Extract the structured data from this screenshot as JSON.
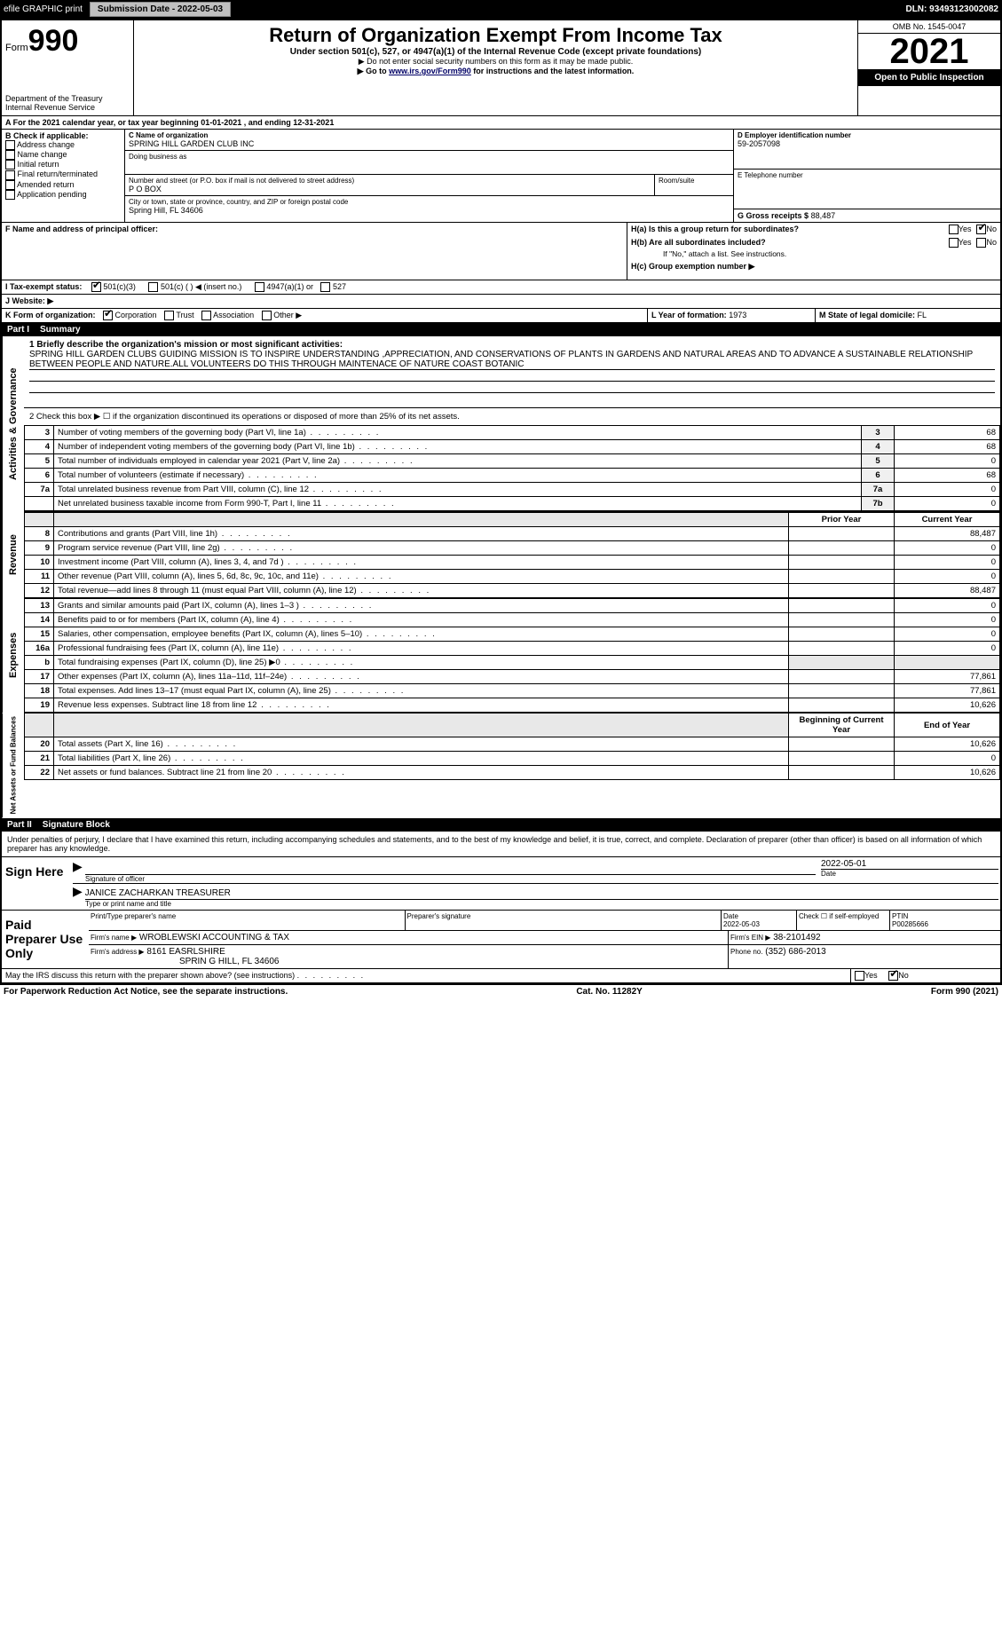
{
  "topbar": {
    "efile": "efile GRAPHIC print",
    "submission_label": "Submission Date - 2022-05-03",
    "dln": "DLN: 93493123002082"
  },
  "header": {
    "form_prefix": "Form",
    "form_num": "990",
    "title": "Return of Organization Exempt From Income Tax",
    "subtitle": "Under section 501(c), 527, or 4947(a)(1) of the Internal Revenue Code (except private foundations)",
    "note1": "▶ Do not enter social security numbers on this form as it may be made public.",
    "note2_pre": "▶ Go to ",
    "note2_link": "www.irs.gov/Form990",
    "note2_post": " for instructions and the latest information.",
    "dept": "Department of the Treasury",
    "irs": "Internal Revenue Service",
    "omb": "OMB No. 1545-0047",
    "year": "2021",
    "open": "Open to Public Inspection"
  },
  "line_a": "A For the 2021 calendar year, or tax year beginning 01-01-2021   , and ending 12-31-2021",
  "box_b": {
    "label": "B Check if applicable:",
    "items": [
      "Address change",
      "Name change",
      "Initial return",
      "Final return/terminated",
      "Amended return",
      "Application pending"
    ]
  },
  "box_c": {
    "label": "C Name of organization",
    "name": "SPRING HILL GARDEN CLUB INC",
    "dba_label": "Doing business as",
    "street_label": "Number and street (or P.O. box if mail is not delivered to street address)",
    "street": "P O BOX",
    "room_label": "Room/suite",
    "city_label": "City or town, state or province, country, and ZIP or foreign postal code",
    "city": "Spring Hill, FL  34606"
  },
  "box_d": {
    "label": "D Employer identification number",
    "value": "59-2057098"
  },
  "box_e": {
    "label": "E Telephone number",
    "value": ""
  },
  "box_g": {
    "label": "G Gross receipts $",
    "value": "88,487"
  },
  "box_f": {
    "label": "F  Name and address of principal officer:"
  },
  "box_h": {
    "a": "H(a)  Is this a group return for subordinates?",
    "b": "H(b)  Are all subordinates included?",
    "note": "If \"No,\" attach a list. See instructions.",
    "c": "H(c)  Group exemption number ▶",
    "yes": "Yes",
    "no": "No"
  },
  "box_i": {
    "label": "I  Tax-exempt status:",
    "opts": [
      "501(c)(3)",
      "501(c) (  ) ◀ (insert no.)",
      "4947(a)(1) or",
      "527"
    ]
  },
  "box_j": {
    "label": "J  Website: ▶"
  },
  "box_k": {
    "label": "K Form of organization:",
    "opts": [
      "Corporation",
      "Trust",
      "Association",
      "Other ▶"
    ]
  },
  "box_l": {
    "label": "L Year of formation: ",
    "value": "1973"
  },
  "box_m": {
    "label": "M State of legal domicile: ",
    "value": "FL"
  },
  "part1": {
    "num": "Part I",
    "title": "Summary"
  },
  "summary": {
    "l1_label": "1  Briefly describe the organization's mission or most significant activities:",
    "l1_text": "SPRING HILL GARDEN CLUBS GUIDING MISSION IS TO INSPIRE UNDERSTANDING ,APPRECIATION, AND CONSERVATIONS OF PLANTS IN GARDENS AND NATURAL AREAS AND TO ADVANCE A SUSTAINABLE RELATIONSHIP BETWEEN PEOPLE AND NATURE.ALL VOLUNTEERS DO THIS THROUGH MAINTENACE OF NATURE COAST BOTANIC",
    "l2": "2   Check this box ▶ ☐  if the organization discontinued its operations or disposed of more than 25% of its net assets."
  },
  "gov_lines": [
    {
      "n": "3",
      "d": "Number of voting members of the governing body (Part VI, line 1a)",
      "b": "3",
      "v": "68"
    },
    {
      "n": "4",
      "d": "Number of independent voting members of the governing body (Part VI, line 1b)",
      "b": "4",
      "v": "68"
    },
    {
      "n": "5",
      "d": "Total number of individuals employed in calendar year 2021 (Part V, line 2a)",
      "b": "5",
      "v": "0"
    },
    {
      "n": "6",
      "d": "Total number of volunteers (estimate if necessary)",
      "b": "6",
      "v": "68"
    },
    {
      "n": "7a",
      "d": "Total unrelated business revenue from Part VIII, column (C), line 12",
      "b": "7a",
      "v": "0"
    },
    {
      "n": "",
      "d": "Net unrelated business taxable income from Form 990-T, Part I, line 11",
      "b": "7b",
      "v": "0"
    }
  ],
  "col_headers": {
    "prior": "Prior Year",
    "current": "Current Year"
  },
  "rev_lines": [
    {
      "n": "8",
      "d": "Contributions and grants (Part VIII, line 1h)",
      "p": "",
      "c": "88,487"
    },
    {
      "n": "9",
      "d": "Program service revenue (Part VIII, line 2g)",
      "p": "",
      "c": "0"
    },
    {
      "n": "10",
      "d": "Investment income (Part VIII, column (A), lines 3, 4, and 7d )",
      "p": "",
      "c": "0"
    },
    {
      "n": "11",
      "d": "Other revenue (Part VIII, column (A), lines 5, 6d, 8c, 9c, 10c, and 11e)",
      "p": "",
      "c": "0"
    },
    {
      "n": "12",
      "d": "Total revenue—add lines 8 through 11 (must equal Part VIII, column (A), line 12)",
      "p": "",
      "c": "88,487"
    }
  ],
  "exp_lines": [
    {
      "n": "13",
      "d": "Grants and similar amounts paid (Part IX, column (A), lines 1–3 )",
      "p": "",
      "c": "0"
    },
    {
      "n": "14",
      "d": "Benefits paid to or for members (Part IX, column (A), line 4)",
      "p": "",
      "c": "0"
    },
    {
      "n": "15",
      "d": "Salaries, other compensation, employee benefits (Part IX, column (A), lines 5–10)",
      "p": "",
      "c": "0"
    },
    {
      "n": "16a",
      "d": "Professional fundraising fees (Part IX, column (A), line 11e)",
      "p": "",
      "c": "0"
    },
    {
      "n": "b",
      "d": "Total fundraising expenses (Part IX, column (D), line 25) ▶0",
      "p": "-",
      "c": "-"
    },
    {
      "n": "17",
      "d": "Other expenses (Part IX, column (A), lines 11a–11d, 11f–24e)",
      "p": "",
      "c": "77,861"
    },
    {
      "n": "18",
      "d": "Total expenses. Add lines 13–17 (must equal Part IX, column (A), line 25)",
      "p": "",
      "c": "77,861"
    },
    {
      "n": "19",
      "d": "Revenue less expenses. Subtract line 18 from line 12",
      "p": "",
      "c": "10,626"
    }
  ],
  "na_headers": {
    "beg": "Beginning of Current Year",
    "end": "End of Year"
  },
  "na_lines": [
    {
      "n": "20",
      "d": "Total assets (Part X, line 16)",
      "p": "",
      "c": "10,626"
    },
    {
      "n": "21",
      "d": "Total liabilities (Part X, line 26)",
      "p": "",
      "c": "0"
    },
    {
      "n": "22",
      "d": "Net assets or fund balances. Subtract line 21 from line 20",
      "p": "",
      "c": "10,626"
    }
  ],
  "side_labels": {
    "gov": "Activities & Governance",
    "rev": "Revenue",
    "exp": "Expenses",
    "na": "Net Assets or Fund Balances"
  },
  "part2": {
    "num": "Part II",
    "title": "Signature Block"
  },
  "sig": {
    "perjury": "Under penalties of perjury, I declare that I have examined this return, including accompanying schedules and statements, and to the best of my knowledge and belief, it is true, correct, and complete. Declaration of preparer (other than officer) is based on all information of which preparer has any knowledge.",
    "sign_here": "Sign Here",
    "sig_officer": "Signature of officer",
    "date": "Date",
    "date_val": "2022-05-01",
    "name": "JANICE ZACHARKAN  TREASURER",
    "name_label": "Type or print name and title"
  },
  "paid": {
    "label": "Paid Preparer Use Only",
    "pt_name_label": "Print/Type preparer's name",
    "sig_label": "Preparer's signature",
    "date_label": "Date",
    "date_val": "2022-05-03",
    "check_label": "Check ☐ if self-employed",
    "ptin_label": "PTIN",
    "ptin": "P00285666",
    "firm_name_label": "Firm's name    ▶",
    "firm_name": "WROBLEWSKI ACCOUNTING & TAX",
    "firm_ein_label": "Firm's EIN ▶",
    "firm_ein": "38-2101492",
    "firm_addr_label": "Firm's address ▶",
    "firm_addr": "8161 EASRLSHIRE",
    "firm_city": "SPRIN G HILL, FL  34606",
    "phone_label": "Phone no.",
    "phone": "(352) 686-2013"
  },
  "discuss": {
    "q": "May the IRS discuss this return with the preparer shown above? (see instructions)",
    "yes": "Yes",
    "no": "No"
  },
  "footer": {
    "left": "For Paperwork Reduction Act Notice, see the separate instructions.",
    "mid": "Cat. No. 11282Y",
    "right": "Form 990 (2021)"
  },
  "colors": {
    "black": "#000000",
    "white": "#ffffff",
    "link": "#000066",
    "grey_btn": "#c0c0c0",
    "grey_box": "#f0f0f0"
  }
}
